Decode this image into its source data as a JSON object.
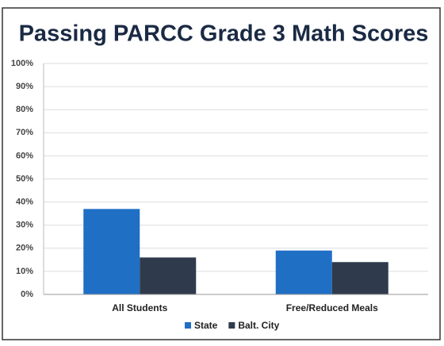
{
  "chart_data": {
    "type": "bar",
    "title": "Passing PARCC Grade 3 Math Scores",
    "categories": [
      "All Students",
      "Free/Reduced Meals"
    ],
    "series": [
      {
        "name": "State",
        "color": "#1f6fc5",
        "values": [
          37,
          19
        ]
      },
      {
        "name": "Balt. City",
        "color": "#2f3b4c",
        "values": [
          16,
          14
        ]
      }
    ],
    "ylim": [
      0,
      100
    ],
    "yticks": [
      {
        "value": 0,
        "label": "0%"
      },
      {
        "value": 10,
        "label": "10%"
      },
      {
        "value": 20,
        "label": "20%"
      },
      {
        "value": 30,
        "label": "30%"
      },
      {
        "value": 40,
        "label": "40%"
      },
      {
        "value": 50,
        "label": "50%"
      },
      {
        "value": 60,
        "label": "60%"
      },
      {
        "value": 70,
        "label": "70%"
      },
      {
        "value": 80,
        "label": "80%"
      },
      {
        "value": 90,
        "label": "90%"
      },
      {
        "value": 100,
        "label": "100%"
      }
    ],
    "grid": true,
    "legend": "bottom"
  }
}
